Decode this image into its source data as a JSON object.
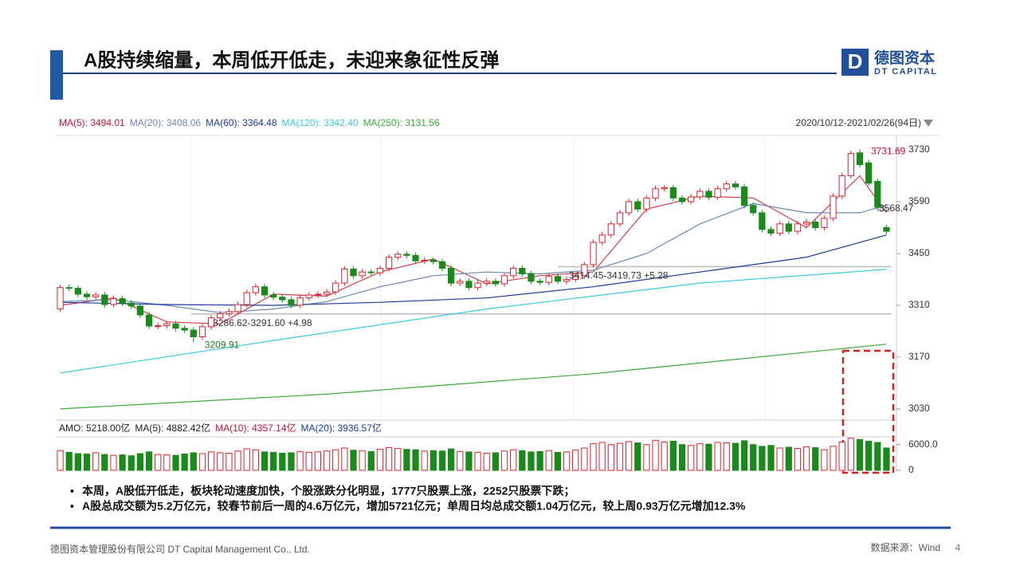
{
  "header": {
    "title": "A股持续缩量，本周低开低走，未迎来象征性反弹",
    "logo_cn": "德图资本",
    "logo_en": "DT CAPITAL",
    "logo_mark": "D"
  },
  "chart_data": {
    "type": "candlestick",
    "ma_legend": [
      {
        "text": "MA(5): 3494.01",
        "color": "#c8102e"
      },
      {
        "text": "MA(20): 3408.06",
        "color": "#6a87b5"
      },
      {
        "text": "MA(60): 3364.48",
        "color": "#1a3a9c"
      },
      {
        "text": "MA(120): 3342.40",
        "color": "#3cc8e6"
      },
      {
        "text": "MA(250): 3131.56",
        "color": "#3aaa35"
      }
    ],
    "date_range": "2020/10/12-2021/02/26(94日)",
    "up_color": "#e0202a",
    "down_color": "#1a8a1a",
    "ylim": [
      3004,
      3758
    ],
    "yticks": [
      3030,
      3170,
      3310,
      3450,
      3590,
      3730
    ],
    "open": [
      3300,
      3358,
      3356,
      3340,
      3333,
      3338,
      3312,
      3328,
      3316,
      3308,
      3284,
      3254,
      3255,
      3260,
      3248,
      3243,
      3225,
      3252,
      3276,
      3287,
      3293,
      3312,
      3344,
      3360,
      3338,
      3332,
      3325,
      3310,
      3330,
      3338,
      3340,
      3346,
      3370,
      3408,
      3390,
      3400,
      3398,
      3410,
      3440,
      3448,
      3445,
      3430,
      3432,
      3428,
      3410,
      3370,
      3375,
      3358,
      3370,
      3375,
      3368,
      3390,
      3410,
      3395,
      3375,
      3372,
      3388,
      3375,
      3380,
      3390,
      3420,
      3480,
      3500,
      3530,
      3560,
      3590,
      3570,
      3600,
      3625,
      3628,
      3600,
      3590,
      3603,
      3618,
      3602,
      3625,
      3638,
      3630,
      3580,
      3560,
      3515,
      3505,
      3530,
      3510,
      3530,
      3535,
      3520,
      3545,
      3605,
      3660,
      3722,
      3695,
      3645,
      3520
    ],
    "high": [
      3366,
      3366,
      3364,
      3348,
      3346,
      3346,
      3336,
      3336,
      3324,
      3316,
      3292,
      3263,
      3268,
      3268,
      3256,
      3251,
      3260,
      3284,
      3295,
      3301,
      3320,
      3352,
      3368,
      3368,
      3346,
      3340,
      3333,
      3338,
      3346,
      3348,
      3354,
      3378,
      3416,
      3416,
      3408,
      3408,
      3418,
      3448,
      3456,
      3456,
      3453,
      3440,
      3440,
      3436,
      3418,
      3383,
      3383,
      3378,
      3383,
      3383,
      3398,
      3418,
      3418,
      3403,
      3383,
      3396,
      3396,
      3388,
      3398,
      3428,
      3488,
      3508,
      3538,
      3568,
      3598,
      3598,
      3608,
      3633,
      3636,
      3636,
      3608,
      3611,
      3626,
      3626,
      3633,
      3646,
      3646,
      3638,
      3588,
      3568,
      3523,
      3538,
      3538,
      3538,
      3543,
      3543,
      3553,
      3613,
      3668,
      3728,
      3731.69,
      3703,
      3653,
      3528
    ],
    "low": [
      3292,
      3348,
      3332,
      3325,
      3325,
      3304,
      3304,
      3308,
      3300,
      3276,
      3246,
      3246,
      3247,
      3240,
      3235,
      3209.91,
      3217,
      3244,
      3268,
      3279,
      3285,
      3304,
      3336,
      3330,
      3324,
      3317,
      3302,
      3302,
      3322,
      3330,
      3332,
      3338,
      3362,
      3382,
      3382,
      3390,
      3390,
      3402,
      3432,
      3437,
      3422,
      3422,
      3420,
      3402,
      3362,
      3362,
      3350,
      3350,
      3362,
      3360,
      3360,
      3382,
      3387,
      3367,
      3364,
      3364,
      3367,
      3367,
      3372,
      3382,
      3412,
      3472,
      3492,
      3522,
      3552,
      3562,
      3562,
      3592,
      3617,
      3592,
      3582,
      3582,
      3595,
      3594,
      3594,
      3617,
      3622,
      3572,
      3552,
      3507,
      3497,
      3497,
      3502,
      3502,
      3522,
      3512,
      3512,
      3537,
      3597,
      3652,
      3682,
      3632,
      3567,
      3502
    ],
    "close": [
      3358,
      3356,
      3340,
      3333,
      3338,
      3312,
      3328,
      3316,
      3308,
      3284,
      3254,
      3255,
      3260,
      3248,
      3243,
      3225,
      3252,
      3276,
      3287,
      3293,
      3312,
      3344,
      3360,
      3338,
      3332,
      3325,
      3310,
      3330,
      3338,
      3340,
      3346,
      3370,
      3408,
      3390,
      3400,
      3398,
      3410,
      3440,
      3448,
      3445,
      3430,
      3432,
      3428,
      3410,
      3370,
      3375,
      3358,
      3370,
      3375,
      3368,
      3390,
      3410,
      3395,
      3375,
      3372,
      3388,
      3375,
      3380,
      3390,
      3420,
      3480,
      3500,
      3530,
      3560,
      3590,
      3570,
      3600,
      3625,
      3628,
      3600,
      3590,
      3603,
      3618,
      3602,
      3625,
      3638,
      3630,
      3580,
      3560,
      3515,
      3505,
      3530,
      3510,
      3530,
      3535,
      3520,
      3545,
      3605,
      3660,
      3720,
      3690,
      3640,
      3575,
      3510
    ],
    "ma": [
      {
        "color": "#d23c4a",
        "x": [
          0,
          6,
          12,
          18,
          24,
          30,
          36,
          42,
          48,
          54,
          60,
          66,
          72,
          78,
          84,
          90,
          93
        ],
        "values": [
          3310,
          3330,
          3265,
          3260,
          3340,
          3335,
          3400,
          3435,
          3368,
          3390,
          3400,
          3570,
          3605,
          3600,
          3520,
          3660,
          3560
        ]
      },
      {
        "color": "#6a87b5",
        "x": [
          0,
          6,
          12,
          18,
          24,
          30,
          36,
          42,
          48,
          54,
          60,
          66,
          72,
          78,
          84,
          90,
          93
        ],
        "values": [
          3320,
          3325,
          3310,
          3290,
          3300,
          3320,
          3360,
          3390,
          3400,
          3395,
          3405,
          3450,
          3530,
          3585,
          3560,
          3560,
          3580
        ]
      },
      {
        "color": "#1a3a9c",
        "x": [
          0,
          12,
          24,
          36,
          48,
          60,
          72,
          84,
          93
        ],
        "values": [
          3318,
          3312,
          3310,
          3318,
          3330,
          3360,
          3400,
          3440,
          3500
        ]
      },
      {
        "color": "#3cc8e6",
        "x": [
          0,
          24,
          48,
          72,
          93
        ],
        "values": [
          3127,
          3215,
          3300,
          3370,
          3407
        ]
      },
      {
        "color": "#3aaa35",
        "x": [
          0,
          30,
          60,
          93
        ],
        "values": [
          3030,
          3070,
          3125,
          3205
        ]
      }
    ],
    "ref_lines": [
      3414.45,
      3286.62,
      3568.47
    ],
    "annotations": [
      "3286.62-3291.60  +4.98",
      "3414.45-3419.73  +5.28",
      "3568.47"
    ],
    "volume": {
      "legend": [
        {
          "text": "AMO: 5218.00亿",
          "color": "#222"
        },
        {
          "text": "MA(5): 4882.42亿",
          "color": "#222"
        },
        {
          "text": "MA(10): 4357.14亿",
          "color": "#c8102e"
        },
        {
          "text": "MA(20): 3936.57亿",
          "color": "#1a3a9c"
        }
      ],
      "ylim": [
        0,
        7800
      ],
      "yticks": [
        0,
        {
          "value": 6000,
          "label": "6000.0"
        }
      ],
      "values": [
        4600,
        4200,
        3900,
        3800,
        4100,
        3700,
        3500,
        3600,
        3400,
        3900,
        4300,
        3700,
        3600,
        3500,
        3800,
        4100,
        3900,
        4300,
        4100,
        4000,
        4500,
        5000,
        4800,
        4300,
        4200,
        4000,
        4100,
        4400,
        4200,
        4300,
        4500,
        4800,
        5200,
        4700,
        4600,
        4400,
        4900,
        5300,
        5100,
        4900,
        4800,
        4500,
        4600,
        4500,
        5000,
        4400,
        4300,
        4200,
        4000,
        4100,
        4500,
        4800,
        4600,
        4300,
        4400,
        4600,
        4200,
        4300,
        4700,
        5200,
        6200,
        6500,
        6000,
        6300,
        6700,
        6400,
        6000,
        7000,
        6600,
        6800,
        6000,
        5800,
        6200,
        6100,
        6500,
        6400,
        6300,
        6900,
        6000,
        5600,
        5800,
        5200,
        5400,
        5100,
        5500,
        5300,
        4800,
        5600,
        6600,
        7500,
        7200,
        6800,
        6500,
        5218
      ]
    }
  },
  "bullets": [
    "本周，A股低开低走，板块轮动速度加快，个股涨跌分化明显，1777只股票上涨，2252只股票下跌；",
    "A股总成交额为5.2万亿元，较春节前后一周的4.6万亿元，增加5721亿元；单周日均总成交额1.04万亿元，较上周0.93万亿元增加12.3%"
  ],
  "footer": {
    "company": "德图资本管理股份有限公司  DT Capital Management Co., Ltd.",
    "source": "数据来源：Wind",
    "page": "4"
  }
}
